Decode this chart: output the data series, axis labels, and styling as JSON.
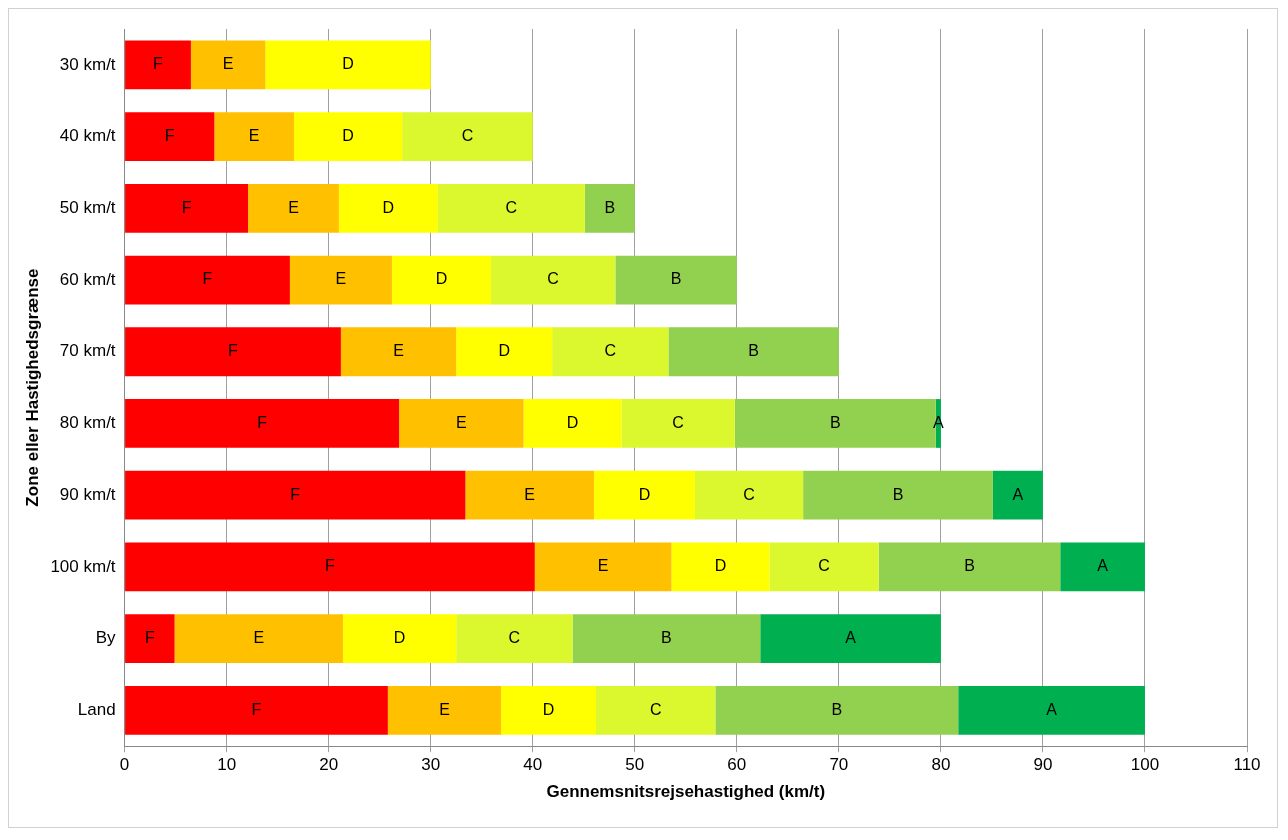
{
  "chart_data": {
    "type": "bar",
    "orientation": "horizontal",
    "stacked": true,
    "xlabel": "Gennemsnitsrejsehastighed (km/t)",
    "ylabel": "Zone eller Hastighedsgrænse",
    "categories": [
      "30 km/t",
      "40 km/t",
      "50 km/t",
      "60 km/t",
      "70 km/t",
      "80 km/t",
      "90 km/t",
      "100 km/t",
      "By",
      "Land"
    ],
    "series": [
      {
        "name": "F",
        "color": "#ff0000",
        "values": [
          6.5,
          8.8,
          12.1,
          16.2,
          21.2,
          26.9,
          33.4,
          40.2,
          4.9,
          25.8
        ]
      },
      {
        "name": "E",
        "color": "#ffc000",
        "values": [
          7.3,
          7.8,
          8.9,
          10.0,
          11.3,
          12.2,
          12.6,
          13.4,
          16.5,
          11.1
        ]
      },
      {
        "name": "D",
        "color": "#ffff00",
        "values": [
          16.2,
          10.6,
          9.7,
          9.7,
          9.4,
          9.6,
          9.9,
          9.6,
          11.1,
          9.3
        ]
      },
      {
        "name": "C",
        "color": "#dbf72d",
        "values": [
          null,
          12.8,
          14.4,
          12.2,
          11.4,
          11.1,
          10.6,
          10.7,
          11.4,
          11.7
        ]
      },
      {
        "name": "B",
        "color": "#92d050",
        "values": [
          null,
          null,
          4.9,
          11.9,
          16.7,
          19.7,
          18.6,
          17.8,
          18.4,
          23.8
        ]
      },
      {
        "name": "A",
        "color": "#00b050",
        "values": [
          null,
          null,
          null,
          null,
          null,
          0.5,
          4.9,
          8.3,
          17.7,
          18.3
        ]
      }
    ],
    "xlim": [
      0,
      110
    ],
    "xticks": [
      0,
      10,
      20,
      30,
      40,
      50,
      60,
      70,
      80,
      90,
      100,
      110
    ],
    "grid": "x"
  }
}
